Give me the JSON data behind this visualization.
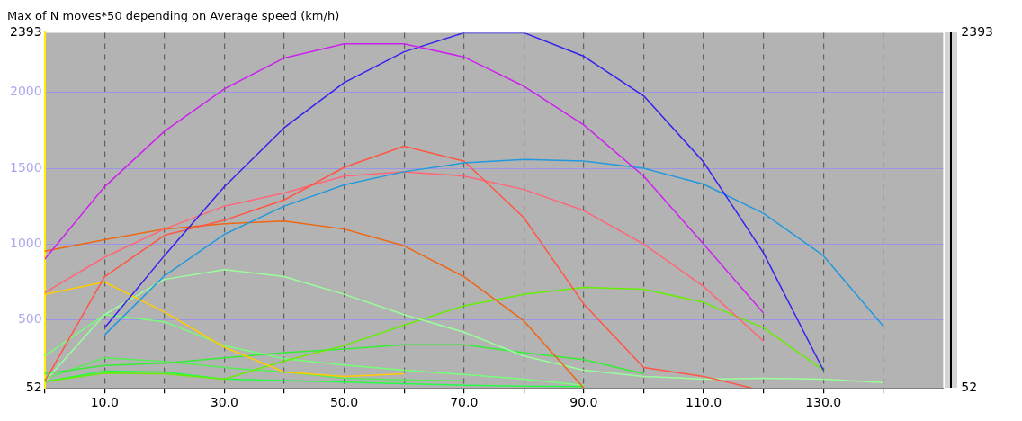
{
  "chart_data": {
    "type": "line",
    "title": "Max of N moves*50 depending on Average speed (km/h)",
    "xlim": [
      0,
      150
    ],
    "xticks": [
      {
        "value": 0,
        "label": null
      },
      {
        "value": 10,
        "label": "10.0"
      },
      {
        "value": 20,
        "label": null
      },
      {
        "value": 30,
        "label": "30.0"
      },
      {
        "value": 40,
        "label": null
      },
      {
        "value": 50,
        "label": "50.0"
      },
      {
        "value": 60,
        "label": null
      },
      {
        "value": 70,
        "label": "70.0"
      },
      {
        "value": 80,
        "label": null
      },
      {
        "value": 90,
        "label": "90.0"
      },
      {
        "value": 100,
        "label": null
      },
      {
        "value": 110,
        "label": "110.0"
      },
      {
        "value": 120,
        "label": null
      },
      {
        "value": 130,
        "label": "130.0"
      },
      {
        "value": 140,
        "label": null
      }
    ],
    "ylim": [
      52,
      2393
    ],
    "yticks": [
      52,
      500,
      1000,
      1500,
      2000,
      2393
    ],
    "y2lim": [
      52,
      2393
    ],
    "y2ticks": [
      52,
      2393
    ],
    "grid": true,
    "legend": false,
    "marker": "none",
    "line_style": "solid",
    "series": [
      {
        "color": "#cc22ee",
        "x": [
          0,
          10,
          20,
          30,
          40,
          50,
          60,
          70,
          80,
          90,
          100,
          110,
          120
        ],
        "values": [
          900,
          1378,
          1744,
          2023,
          2227,
          2320,
          2320,
          2233,
          2041,
          1785,
          1448,
          1000,
          546
        ]
      },
      {
        "color": "#3322ee",
        "x": [
          10,
          20,
          30,
          40,
          50,
          60,
          70,
          80,
          90,
          100,
          110,
          120,
          130
        ],
        "values": [
          448,
          924,
          1378,
          1767,
          2064,
          2267,
          2393,
          2393,
          2238,
          1977,
          1541,
          942,
          169
        ]
      },
      {
        "color": "#2299dd",
        "x": [
          10,
          20,
          30,
          40,
          50,
          60,
          70,
          80,
          90,
          100,
          110,
          120,
          130,
          140
        ],
        "values": [
          401,
          791,
          1064,
          1250,
          1390,
          1477,
          1535,
          1558,
          1547,
          1500,
          1395,
          1203,
          924,
          459
        ]
      },
      {
        "color": "#ff5544",
        "x": [
          0,
          10,
          20,
          30,
          40,
          50,
          60,
          70,
          80,
          90,
          100,
          110,
          118
        ],
        "values": [
          93,
          785,
          1058,
          1157,
          1291,
          1506,
          1645,
          1547,
          1174,
          605,
          186,
          128,
          52
        ]
      },
      {
        "color": "#ff6677",
        "x": [
          0,
          10,
          20,
          30,
          40,
          50,
          60,
          70,
          80,
          90,
          100,
          110,
          120
        ],
        "values": [
          680,
          913,
          1099,
          1250,
          1337,
          1448,
          1477,
          1448,
          1360,
          1221,
          1000,
          721,
          360
        ]
      },
      {
        "color": "#ee6611",
        "x": [
          0,
          10,
          20,
          30,
          40,
          50,
          60,
          70,
          80,
          90
        ],
        "values": [
          953,
          1029,
          1099,
          1134,
          1151,
          1099,
          988,
          785,
          494,
          52
        ]
      },
      {
        "color": "#ffcc00",
        "x": [
          0,
          10,
          20,
          30,
          40,
          50,
          60
        ],
        "values": [
          669,
          750,
          552,
          320,
          157,
          128,
          145
        ]
      },
      {
        "color": "#99ff99",
        "x": [
          0,
          10,
          20,
          30,
          40,
          50,
          60,
          70,
          80,
          90,
          100,
          110,
          120,
          130,
          140
        ],
        "values": [
          93,
          535,
          767,
          831,
          785,
          669,
          535,
          419,
          262,
          169,
          128,
          110,
          116,
          110,
          87
        ]
      },
      {
        "color": "#66ee00",
        "x": [
          0,
          10,
          20,
          30,
          40,
          50,
          60,
          70,
          80,
          90,
          100,
          110,
          120,
          130
        ],
        "values": [
          93,
          150,
          145,
          110,
          230,
          331,
          465,
          593,
          669,
          715,
          703,
          616,
          448,
          169
        ]
      },
      {
        "color": "#33ee33",
        "x": [
          0,
          10,
          20,
          30,
          40,
          50,
          60,
          70,
          80,
          90,
          100
        ],
        "values": [
          145,
          200,
          215,
          250,
          285,
          308,
          337,
          337,
          285,
          238,
          145
        ]
      },
      {
        "color": "#77ff77",
        "x": [
          0,
          10,
          20,
          30,
          40,
          50,
          60,
          70,
          80,
          90
        ],
        "values": [
          262,
          535,
          488,
          331,
          244,
          203,
          169,
          140,
          110,
          70
        ]
      },
      {
        "color": "#55ee55",
        "x": [
          0,
          10,
          20,
          30,
          40,
          50,
          60,
          70
        ],
        "values": [
          110,
          250,
          227,
          186,
          157,
          116,
          105,
          99
        ]
      },
      {
        "color": "#22ff44",
        "x": [
          0,
          10,
          20,
          30,
          40,
          50,
          60,
          70,
          80,
          90
        ],
        "values": [
          93,
          163,
          157,
          110,
          100,
          90,
          80,
          70,
          64,
          60
        ]
      }
    ]
  }
}
